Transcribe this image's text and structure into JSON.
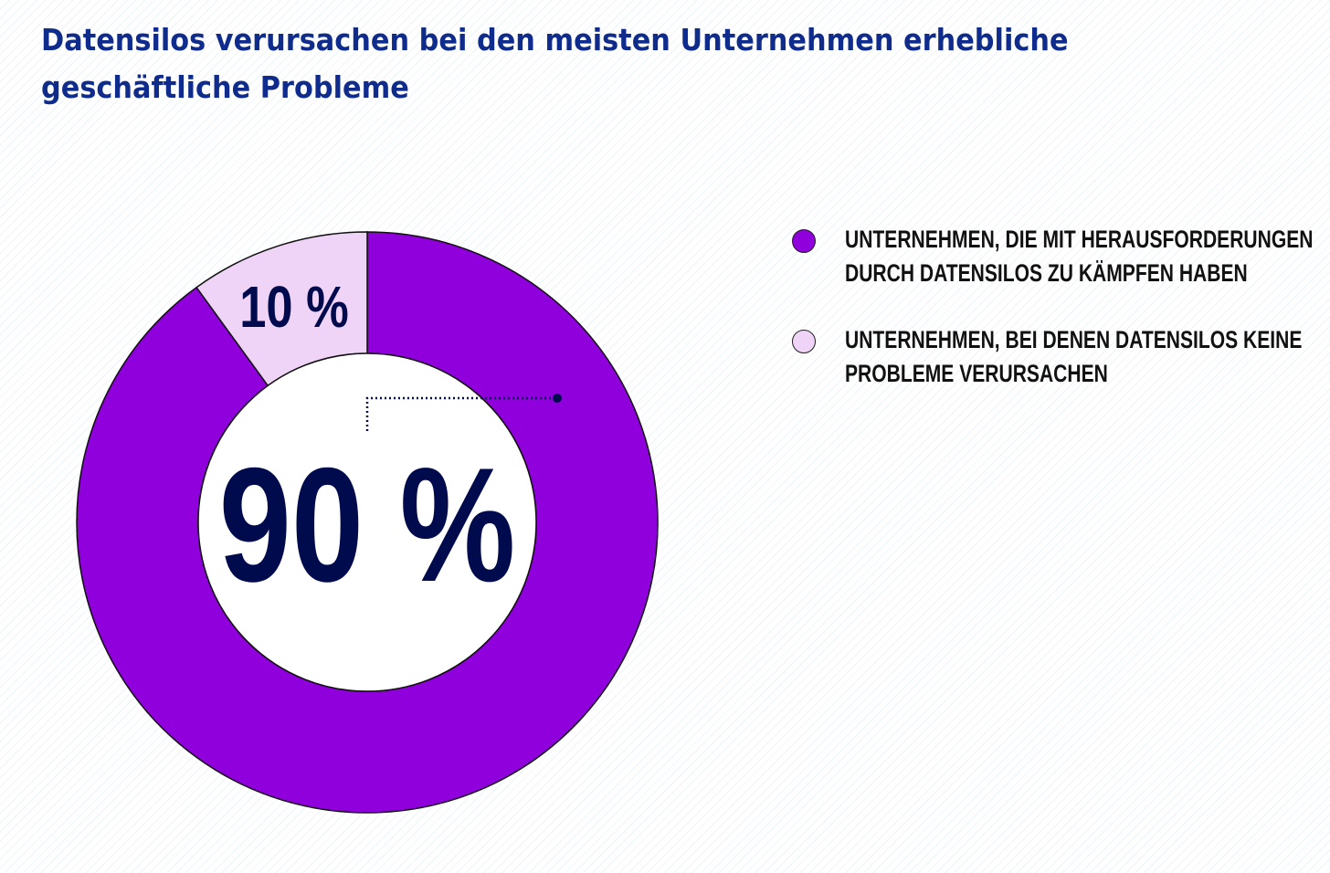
{
  "title": "Datensilos verursachen bei den meisten Unternehmen erhebliche geschäftliche Probleme",
  "chart_data": {
    "type": "pie",
    "title": "Datensilos verursachen bei den meisten Unternehmen erhebliche geschäftliche Probleme",
    "unit": "%",
    "slices": [
      {
        "label": "UNTERNEHMEN, DIE MIT HERAUSFORDERUNGEN DURCH DATENSILOS ZU KÄMPFEN HABEN",
        "label_lines": [
          "UNTERNEHMEN, DIE MIT HERAUSFORDERUNGEN",
          "DURCH DATENSILOS ZU KÄMPFEN HABEN"
        ],
        "value": 90,
        "display": "90 %",
        "color": "#9000dc"
      },
      {
        "label": "UNTERNEHMEN, BEI DENEN DATENSILOS KEINE PROBLEME VERURSACHEN",
        "label_lines": [
          "UNTERNEHMEN, BEI DENEN DATENSILOS KEINE",
          "PROBLEME VERURSACHEN"
        ],
        "value": 10,
        "display": "10 %",
        "color": "#f0d4f8"
      }
    ],
    "legend_position": "right",
    "text_color": "#000b4d",
    "outline_color": "#111111"
  }
}
